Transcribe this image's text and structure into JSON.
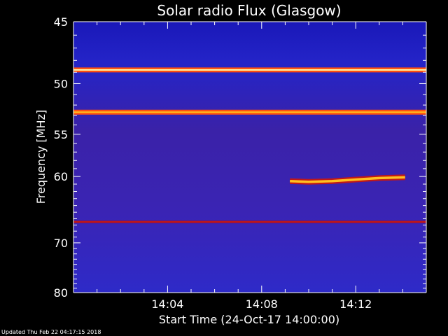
{
  "chart_data": {
    "type": "heatmap",
    "title": "Solar radio Flux (Glasgow)",
    "xlabel": "Start Time (24-Oct-17 14:00:00)",
    "ylabel": "Frequency [MHz]",
    "x_unit": "minutes after 14:00",
    "xlim": [
      0,
      15
    ],
    "ylim": [
      45,
      80
    ],
    "y_scale": "reciprocal",
    "x_ticks": [
      {
        "value": 4,
        "label": "14:04"
      },
      {
        "value": 8,
        "label": "14:08"
      },
      {
        "value": 12,
        "label": "14:12"
      }
    ],
    "y_ticks": [
      {
        "value": 45,
        "label": "45"
      },
      {
        "value": 50,
        "label": "50"
      },
      {
        "value": 55,
        "label": "55"
      },
      {
        "value": 60,
        "label": "60"
      },
      {
        "value": 70,
        "label": "70"
      },
      {
        "value": 80,
        "label": "80"
      }
    ],
    "colormap": [
      "#1a1acc",
      "#3a1ea8",
      "#7a1060",
      "#c01818",
      "#ff5010",
      "#ffc020",
      "#ffffb0"
    ],
    "background_color": "#2a28c0",
    "band_emission": [
      {
        "freq_mhz": 48.8,
        "intensity": 1.0
      },
      {
        "freq_mhz": 52.7,
        "intensity": 0.85
      },
      {
        "freq_mhz": 66.5,
        "intensity": 0.45
      }
    ],
    "burst": [
      {
        "time_min": 9.2,
        "freq_mhz": 60.6
      },
      {
        "time_min": 10.0,
        "freq_mhz": 60.7
      },
      {
        "time_min": 11.0,
        "freq_mhz": 60.6
      },
      {
        "time_min": 12.0,
        "freq_mhz": 60.4
      },
      {
        "time_min": 13.0,
        "freq_mhz": 60.2
      },
      {
        "time_min": 14.1,
        "freq_mhz": 60.1
      }
    ]
  },
  "footer": "Updated Thu Feb 22 04:17:15 2018"
}
